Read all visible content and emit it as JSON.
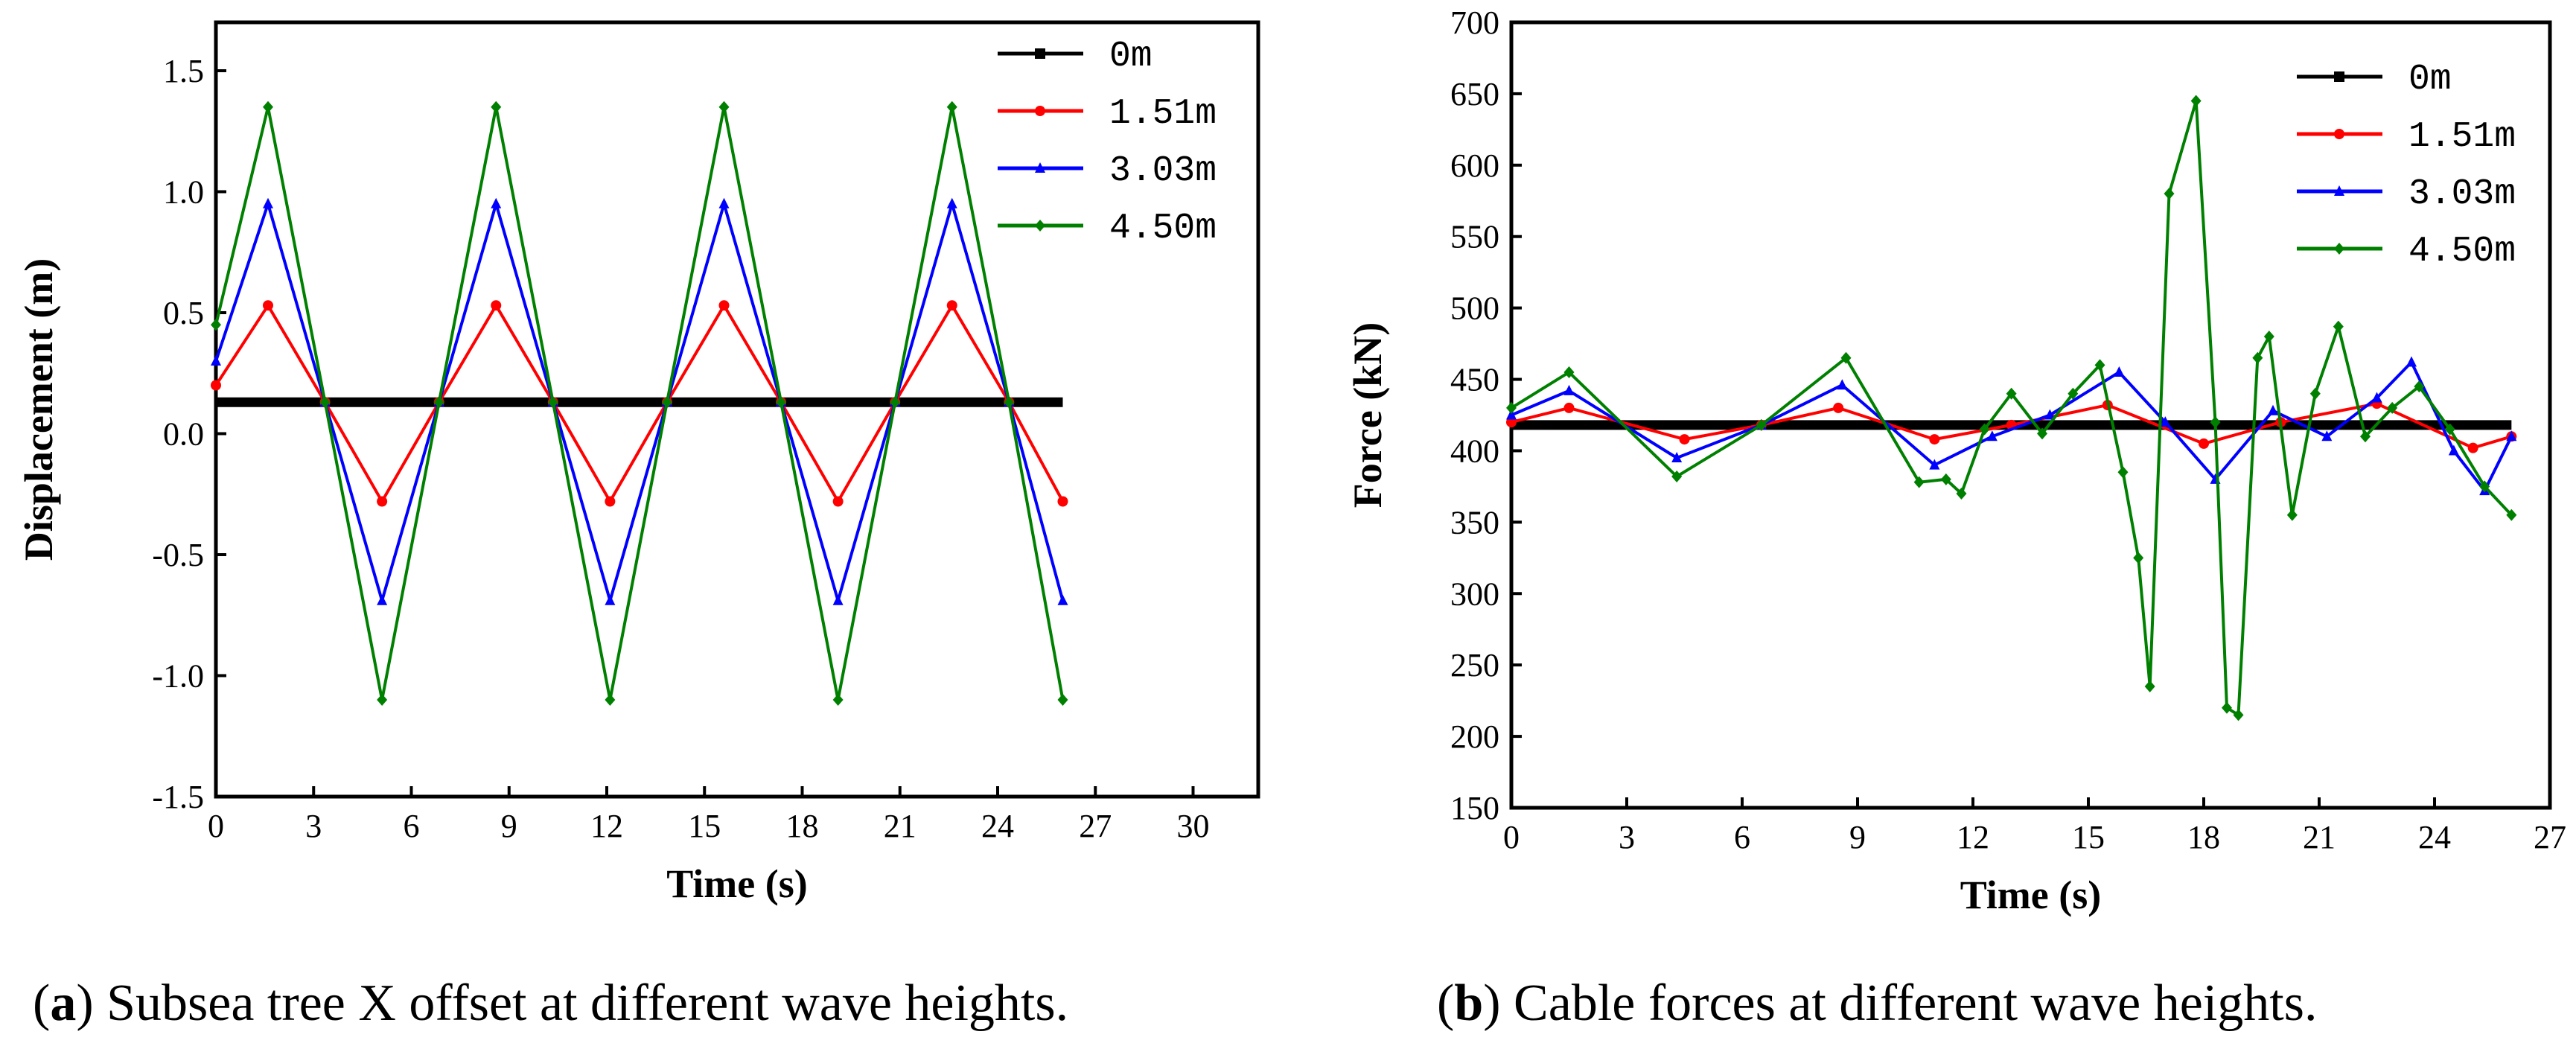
{
  "captions": [
    {
      "open": "(",
      "letter": "a",
      "text": ") Subsea tree X offset at different wave heights."
    },
    {
      "open": "(",
      "letter": "b",
      "text": ") Cable forces at different wave heights."
    }
  ],
  "chart_data": [
    {
      "type": "line",
      "title": "",
      "xlabel": "Time (s)",
      "ylabel": "Displacement (m)",
      "xlim": [
        0,
        32
      ],
      "ylim": [
        -1.5,
        1.7
      ],
      "xticks": [
        0,
        3,
        6,
        9,
        12,
        15,
        18,
        21,
        24,
        27,
        30
      ],
      "yticks": [
        -1.5,
        -1.0,
        -0.5,
        0.0,
        0.5,
        1.0,
        1.5
      ],
      "ytick_labels": [
        "-1.5",
        "-1.0",
        "-0.5",
        "0.0",
        "0.5",
        "1.0",
        "1.5"
      ],
      "legend_position": "top-right",
      "series": [
        {
          "name": "0m",
          "color": "#000000",
          "marker": "square",
          "x": [
            0,
            26
          ],
          "y": [
            0.13,
            0.13
          ]
        },
        {
          "name": "1.51m",
          "color": "#ff0000",
          "marker": "circle",
          "x": [
            0,
            1.6,
            3.35,
            5.1,
            6.85,
            8.6,
            10.35,
            12.1,
            13.85,
            15.6,
            17.35,
            19.1,
            20.85,
            22.6,
            24.35,
            26
          ],
          "y": [
            0.2,
            0.53,
            0.13,
            -0.28,
            0.13,
            0.53,
            0.13,
            -0.28,
            0.13,
            0.53,
            0.13,
            -0.28,
            0.13,
            0.53,
            0.13,
            -0.28
          ]
        },
        {
          "name": "3.03m",
          "color": "#0000ff",
          "marker": "triangle",
          "x": [
            0,
            1.6,
            3.35,
            5.1,
            6.85,
            8.6,
            10.35,
            12.1,
            13.85,
            15.6,
            17.35,
            19.1,
            20.85,
            22.6,
            24.35,
            26
          ],
          "y": [
            0.3,
            0.95,
            0.13,
            -0.69,
            0.13,
            0.95,
            0.13,
            -0.69,
            0.13,
            0.95,
            0.13,
            -0.69,
            0.13,
            0.95,
            0.13,
            -0.69
          ]
        },
        {
          "name": "4.50m",
          "color": "#008000",
          "marker": "diamond",
          "x": [
            0,
            1.6,
            3.35,
            5.1,
            6.85,
            8.6,
            10.35,
            12.1,
            13.85,
            15.6,
            17.35,
            19.1,
            20.85,
            22.6,
            24.35,
            26
          ],
          "y": [
            0.45,
            1.35,
            0.13,
            -1.1,
            0.13,
            1.35,
            0.13,
            -1.1,
            0.13,
            1.35,
            0.13,
            -1.1,
            0.13,
            1.35,
            0.13,
            -1.1
          ]
        }
      ]
    },
    {
      "type": "line",
      "title": "",
      "xlabel": "Time (s)",
      "ylabel": "Force (kN)",
      "xlim": [
        0,
        27
      ],
      "ylim": [
        150,
        700
      ],
      "xticks": [
        0,
        3,
        6,
        9,
        12,
        15,
        18,
        21,
        24,
        27
      ],
      "yticks": [
        150,
        200,
        250,
        300,
        350,
        400,
        450,
        500,
        550,
        600,
        650,
        700
      ],
      "ytick_labels": [
        "150",
        "200",
        "250",
        "300",
        "350",
        "400",
        "450",
        "500",
        "550",
        "600",
        "650",
        "700"
      ],
      "legend_position": "top-right",
      "series": [
        {
          "name": "0m",
          "color": "#000000",
          "marker": "square",
          "x": [
            0,
            26
          ],
          "y": [
            418,
            418
          ]
        },
        {
          "name": "1.51m",
          "color": "#ff0000",
          "marker": "circle",
          "x": [
            0,
            1.5,
            4.5,
            6.5,
            8.5,
            11,
            13,
            15.5,
            18,
            20,
            22.5,
            25,
            26
          ],
          "y": [
            420,
            430,
            408,
            418,
            430,
            408,
            418,
            432,
            405,
            420,
            433,
            402,
            410
          ]
        },
        {
          "name": "3.03m",
          "color": "#0000ff",
          "marker": "triangle",
          "x": [
            0,
            1.5,
            4.3,
            6.5,
            8.6,
            11,
            12.5,
            14,
            15.8,
            17,
            18.3,
            19.8,
            21.2,
            22.5,
            23.4,
            24.5,
            25.3,
            26
          ],
          "y": [
            425,
            442,
            395,
            418,
            446,
            390,
            410,
            425,
            455,
            420,
            380,
            428,
            410,
            437,
            462,
            400,
            372,
            410
          ]
        },
        {
          "name": "4.50m",
          "color": "#008000",
          "marker": "diamond",
          "x": [
            0,
            1.5,
            4.3,
            6.5,
            8.7,
            10.6,
            11.3,
            11.7,
            12.3,
            13,
            13.8,
            14.6,
            15.3,
            15.9,
            16.3,
            16.6,
            17.1,
            17.8,
            18.3,
            18.6,
            18.9,
            19.4,
            19.7,
            20.3,
            20.9,
            21.5,
            22.2,
            22.9,
            23.6,
            24.4,
            25.3,
            26
          ],
          "y": [
            430,
            455,
            382,
            418,
            465,
            378,
            380,
            370,
            415,
            440,
            412,
            440,
            460,
            385,
            325,
            235,
            580,
            645,
            420,
            220,
            215,
            465,
            480,
            355,
            440,
            487,
            410,
            430,
            445,
            415,
            375,
            355
          ]
        }
      ]
    }
  ]
}
